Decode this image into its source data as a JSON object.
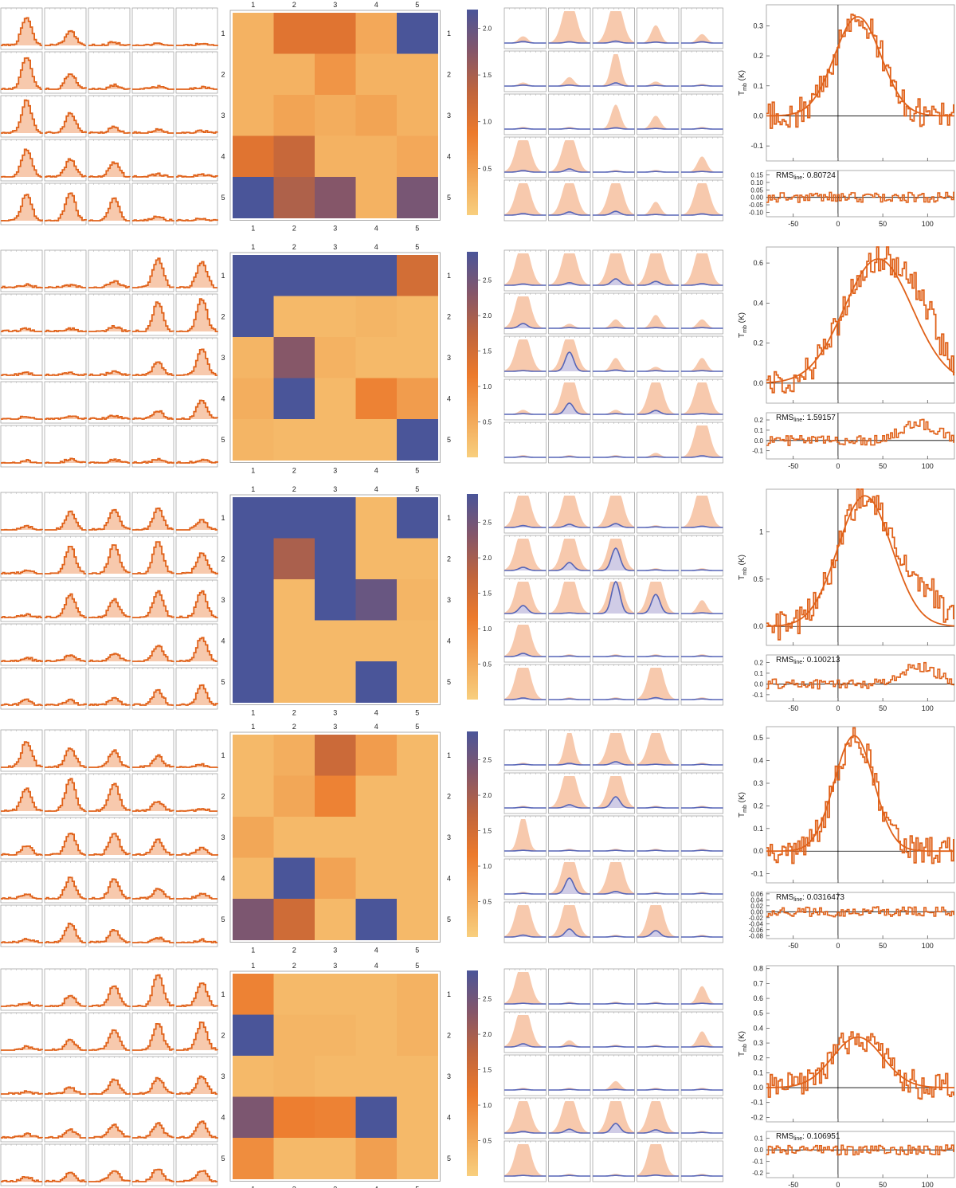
{
  "chart_data": {
    "type": "figure-grid",
    "theme": {
      "orange": "#e0621a",
      "fill_orange": "#f7c9ad",
      "blue": "#5765b7",
      "fill_blue": "#c9cdf0",
      "heat_low": "#f8cf7e",
      "heat_mid": "#ec7a2c",
      "heat_mid2": "#c0653d",
      "heat_high2": "#84566a",
      "heat_high": "#4a5599",
      "frame": "#999999",
      "zero_line": "#000000"
    },
    "grid_labels": [
      "1",
      "2",
      "3",
      "4",
      "5"
    ],
    "spectrum_xticks": [
      -50,
      0,
      50,
      100
    ],
    "spectrum_xlim": [
      -80,
      130
    ],
    "rows": [
      {
        "peaks": [
          [
            0.85,
            0.45,
            0.1,
            0.08,
            0.06
          ],
          [
            1,
            0.5,
            0.12,
            0.08,
            0.06
          ],
          [
            1,
            0.6,
            0.18,
            0.1,
            0.06
          ],
          [
            0.85,
            0.55,
            0.45,
            0.08,
            0.06
          ],
          [
            0.8,
            0.85,
            0.7,
            0.12,
            0.06
          ]
        ],
        "heat": [
          [
            0.3,
            1.0,
            1.0,
            0.4,
            2.2
          ],
          [
            0.3,
            0.3,
            0.6,
            0.3,
            0.3
          ],
          [
            0.3,
            0.45,
            0.35,
            0.45,
            0.3
          ],
          [
            1.0,
            1.25,
            0.3,
            0.3,
            0.4
          ],
          [
            2.2,
            1.45,
            1.75,
            0.3,
            1.85
          ]
        ],
        "colorbar_ticks": [
          0.5,
          1.0,
          1.5,
          2.0
        ],
        "colorbar_max": 2.2,
        "model_amp": [
          [
            0.15,
            1,
            1,
            0.4,
            0.2
          ],
          [
            0.08,
            0.2,
            0.8,
            0.1,
            0.05
          ],
          [
            0.05,
            0.05,
            0.55,
            0.3,
            0.05
          ],
          [
            0.95,
            0.9,
            0.05,
            0.05,
            0.35
          ],
          [
            0.9,
            0.9,
            0.9,
            0.3,
            0.9
          ]
        ],
        "model_blue": [
          [
            0.05,
            0.04,
            0.06,
            0.03,
            0.04
          ],
          [
            0.03,
            0.03,
            0.1,
            0.02,
            0.02
          ],
          [
            0.02,
            0.02,
            0.04,
            0.02,
            0.02
          ],
          [
            0.05,
            0.1,
            0.02,
            0.02,
            0.02
          ],
          [
            0.05,
            0.1,
            0.12,
            0.02,
            0.04
          ]
        ],
        "yticks": [
          -0.1,
          0.0,
          0.1,
          0.2,
          0.3
        ],
        "ylim": [
          -0.15,
          0.37
        ],
        "fit": {
          "amp": 0.33,
          "center": 22,
          "width": 26
        },
        "rms": "0.80724",
        "res_yticks": [
          -0.1,
          -0.05,
          0.0,
          0.05,
          0.1,
          0.15
        ],
        "res_ylim": [
          -0.13,
          0.18
        ]
      },
      {
        "peaks": [
          [
            0.1,
            0.08,
            0.2,
            0.9,
            0.8
          ],
          [
            0.08,
            0.08,
            0.15,
            0.9,
            1
          ],
          [
            0.08,
            0.08,
            0.12,
            0.4,
            0.8
          ],
          [
            0.08,
            0.1,
            0.1,
            0.25,
            0.6
          ],
          [
            0.08,
            0.12,
            0.1,
            0.12,
            0.1
          ]
        ],
        "heat": [
          [
            2.9,
            2.9,
            2.9,
            2.9,
            1.5
          ],
          [
            2.9,
            0.3,
            0.3,
            0.35,
            0.3
          ],
          [
            0.35,
            2.3,
            0.4,
            0.3,
            0.3
          ],
          [
            0.45,
            2.9,
            0.3,
            1.05,
            0.7
          ],
          [
            0.35,
            0.3,
            0.3,
            0.3,
            2.9
          ]
        ],
        "colorbar_ticks": [
          0.5,
          1.0,
          1.5,
          2.0,
          2.5
        ],
        "colorbar_max": 2.9,
        "model_amp": [
          [
            1,
            1,
            1,
            1,
            1
          ],
          [
            1,
            0.1,
            0.2,
            0.3,
            0.2
          ],
          [
            0.9,
            0.9,
            0.3,
            0.1,
            0.3
          ],
          [
            0.1,
            1,
            0.1,
            0.9,
            0.9
          ],
          [
            0.05,
            0.05,
            0.05,
            0.1,
            1
          ]
        ],
        "model_blue": [
          [
            0.04,
            0.08,
            0.2,
            0.12,
            0.05
          ],
          [
            0.15,
            0.02,
            0.02,
            0.02,
            0.02
          ],
          [
            0.02,
            0.6,
            0.04,
            0.02,
            0.02
          ],
          [
            0.02,
            0.35,
            0.02,
            0.12,
            0.02
          ],
          [
            0.02,
            0.02,
            0.02,
            0.02,
            0.05
          ]
        ],
        "yticks": [
          0.0,
          0.2,
          0.4,
          0.6
        ],
        "ylim": [
          -0.1,
          0.68
        ],
        "fit": {
          "amp": 0.62,
          "center": 45,
          "width": 38
        },
        "rms": "1.59157",
        "res_yticks": [
          -0.1,
          0.0,
          0.1,
          0.2
        ],
        "res_ylim": [
          -0.18,
          0.27
        ]
      },
      {
        "peaks": [
          [
            0.1,
            0.55,
            0.6,
            0.65,
            0.3
          ],
          [
            0.1,
            0.85,
            0.9,
            1,
            0.65
          ],
          [
            0.08,
            0.7,
            0.55,
            0.8,
            0.8
          ],
          [
            0.12,
            0.2,
            0.25,
            0.5,
            0.75
          ],
          [
            0.15,
            0.15,
            0.2,
            0.45,
            0.6
          ]
        ],
        "heat": [
          [
            2.9,
            2.9,
            2.9,
            0.3,
            2.9
          ],
          [
            2.9,
            1.95,
            2.9,
            0.3,
            0.3
          ],
          [
            2.9,
            0.3,
            2.9,
            2.6,
            0.35
          ],
          [
            2.9,
            0.3,
            0.3,
            0.3,
            0.3
          ],
          [
            2.9,
            0.3,
            0.3,
            2.9,
            0.3
          ]
        ],
        "colorbar_ticks": [
          0.5,
          1.0,
          1.5,
          2.0,
          2.5
        ],
        "colorbar_max": 2.9,
        "model_amp": [
          [
            1,
            1,
            1,
            0.05,
            1
          ],
          [
            1,
            1,
            1,
            0.05,
            0.05
          ],
          [
            1,
            1,
            1,
            1,
            0.3
          ],
          [
            1,
            0.05,
            0.05,
            0.05,
            0.05
          ],
          [
            1,
            0.05,
            0.05,
            1,
            0.05
          ]
        ],
        "model_blue": [
          [
            0.06,
            0.1,
            0.12,
            0.02,
            0.04
          ],
          [
            0.1,
            0.25,
            0.7,
            0.02,
            0.02
          ],
          [
            0.25,
            0.02,
            1,
            0.6,
            0.02
          ],
          [
            0.1,
            0.02,
            0.02,
            0.02,
            0.02
          ],
          [
            0.05,
            0.02,
            0.02,
            0.06,
            0.02
          ]
        ],
        "yticks": [
          0.0,
          0.5,
          1.0
        ],
        "ylim": [
          -0.2,
          1.45
        ],
        "fit": {
          "amp": 1.38,
          "center": 30,
          "width": 30
        },
        "rms": "0.100213",
        "res_yticks": [
          -0.1,
          0.0,
          0.1,
          0.2
        ],
        "res_ylim": [
          -0.16,
          0.27
        ]
      },
      {
        "peaks": [
          [
            0.8,
            0.6,
            0.5,
            0.35,
            0.08
          ],
          [
            0.7,
            1,
            0.85,
            0.3,
            0.08
          ],
          [
            0.3,
            0.7,
            0.7,
            0.45,
            0.2
          ],
          [
            0.12,
            0.65,
            0.6,
            0.3,
            0.15
          ],
          [
            0.12,
            0.6,
            0.4,
            0.15,
            0.08
          ]
        ],
        "heat": [
          [
            0.3,
            0.45,
            1.6,
            0.7,
            0.3
          ],
          [
            0.3,
            0.55,
            1.05,
            0.3,
            0.3
          ],
          [
            0.55,
            0.3,
            0.3,
            0.3,
            0.3
          ],
          [
            0.3,
            2.9,
            0.6,
            0.3,
            0.3
          ],
          [
            2.4,
            1.55,
            0.3,
            2.9,
            0.3
          ]
        ],
        "colorbar_ticks": [
          0.5,
          1.0,
          1.5,
          2.0,
          2.5
        ],
        "colorbar_max": 2.9,
        "model_amp": [
          [
            0.05,
            0.8,
            1,
            0.9,
            0.05
          ],
          [
            0.05,
            1,
            1,
            0.05,
            0.05
          ],
          [
            0.8,
            0.05,
            0.05,
            0.05,
            0.05
          ],
          [
            0.05,
            1,
            1,
            0.05,
            0.05
          ],
          [
            1,
            1,
            0.05,
            1,
            0.05
          ]
        ],
        "model_blue": [
          [
            0.02,
            0.05,
            0.1,
            0.02,
            0.02
          ],
          [
            0.02,
            0.1,
            0.35,
            0.02,
            0.02
          ],
          [
            0.02,
            0.02,
            0.02,
            0.02,
            0.02
          ],
          [
            0.02,
            0.5,
            0.08,
            0.02,
            0.02
          ],
          [
            0.06,
            0.25,
            0.02,
            0.2,
            0.02
          ]
        ],
        "yticks": [
          -0.1,
          0.0,
          0.1,
          0.2,
          0.3,
          0.4,
          0.5
        ],
        "ylim": [
          -0.14,
          0.55
        ],
        "fit": {
          "amp": 0.51,
          "center": 18,
          "width": 22
        },
        "rms": "0.0316473",
        "res_yticks": [
          -0.08,
          -0.06,
          -0.04,
          -0.02,
          0.0,
          0.02,
          0.04,
          0.06
        ],
        "res_ylim": [
          -0.09,
          0.065
        ]
      },
      {
        "peaks": [
          [
            0.1,
            0.35,
            0.65,
            1,
            0.75
          ],
          [
            0.1,
            0.3,
            0.6,
            0.8,
            0.85
          ],
          [
            0.08,
            0.2,
            0.45,
            0.5,
            0.55
          ],
          [
            0.12,
            0.25,
            0.4,
            0.45,
            0.5
          ],
          [
            0.15,
            0.3,
            0.35,
            0.4,
            0.35
          ]
        ],
        "heat": [
          [
            1.05,
            0.3,
            0.3,
            0.3,
            0.4
          ],
          [
            2.9,
            0.35,
            0.35,
            0.3,
            0.4
          ],
          [
            0.3,
            0.35,
            0.3,
            0.3,
            0.3
          ],
          [
            2.4,
            1.1,
            1.05,
            2.9,
            0.3
          ],
          [
            0.9,
            0.3,
            0.3,
            0.65,
            0.3
          ]
        ],
        "colorbar_ticks": [
          0.5,
          1.0,
          1.5,
          2.0,
          2.5
        ],
        "colorbar_max": 2.9,
        "model_amp": [
          [
            1,
            0.05,
            0.05,
            0.05,
            0.4
          ],
          [
            1,
            0.15,
            0.05,
            0.05,
            0.35
          ],
          [
            0.05,
            0.05,
            0.2,
            0.05,
            0.05
          ],
          [
            0.9,
            0.9,
            1,
            0.9,
            0.05
          ],
          [
            1,
            0.05,
            0.05,
            1,
            0.05
          ]
        ],
        "model_blue": [
          [
            0.02,
            0.02,
            0.02,
            0.02,
            0.02
          ],
          [
            0.1,
            0.04,
            0.02,
            0.02,
            0.02
          ],
          [
            0.02,
            0.02,
            0.02,
            0.02,
            0.02
          ],
          [
            0.05,
            0.12,
            0.3,
            0.1,
            0.02
          ],
          [
            0.02,
            0.02,
            0.02,
            0.03,
            0.02
          ]
        ],
        "yticks": [
          -0.2,
          -0.1,
          0.0,
          0.1,
          0.2,
          0.3,
          0.4,
          0.5,
          0.6,
          0.7,
          0.8
        ],
        "ylim": [
          -0.23,
          0.82
        ],
        "fit": {
          "amp": 0.34,
          "center": 22,
          "width": 28
        },
        "rms": "0.106951",
        "res_yticks": [
          -0.2,
          -0.1,
          0.0,
          0.1
        ],
        "res_ylim": [
          -0.24,
          0.16
        ]
      }
    ],
    "ylabel": "T",
    "ylabel_sub": "mb",
    "ylabel_unit": " (K)",
    "rms_label": "RMS",
    "rms_sub": "line",
    "rms_sep": ": "
  }
}
